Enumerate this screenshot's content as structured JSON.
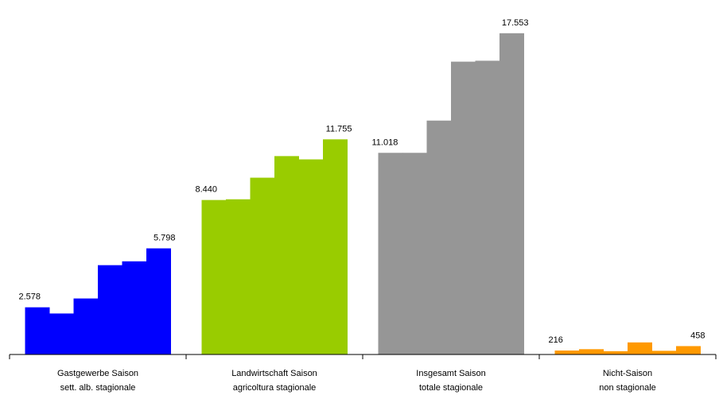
{
  "chart_data": {
    "type": "bar",
    "groups": [
      {
        "label_line1": "Gastgewerbe Saison",
        "label_line2": "sett. alb. stagionale",
        "color": "#0000ff",
        "values": [
          2578,
          2240,
          3060,
          4880,
          5090,
          5798
        ],
        "first_label": "2.578",
        "last_label": "5.798"
      },
      {
        "label_line1": "Landwirtschaft Saison",
        "label_line2": "agricoltura stagionale",
        "color": "#99cc00",
        "values": [
          8440,
          8480,
          9660,
          10840,
          10660,
          11755
        ],
        "first_label": "8.440",
        "last_label": "11.755"
      },
      {
        "label_line1": "Insgesamt Saison",
        "label_line2": "totale stagionale",
        "color": "#969696",
        "values": [
          11018,
          11018,
          12780,
          16000,
          16050,
          17553
        ],
        "first_label": "11.018",
        "last_label": "17.553"
      },
      {
        "label_line1": "Nicht-Saison",
        "label_line2": "non stagionale",
        "color": "#ff9900",
        "values": [
          216,
          290,
          180,
          660,
          200,
          458
        ],
        "first_label": "216",
        "last_label": "458"
      }
    ],
    "ylim": [
      0,
      18500
    ],
    "grid": false,
    "legend": "none"
  }
}
